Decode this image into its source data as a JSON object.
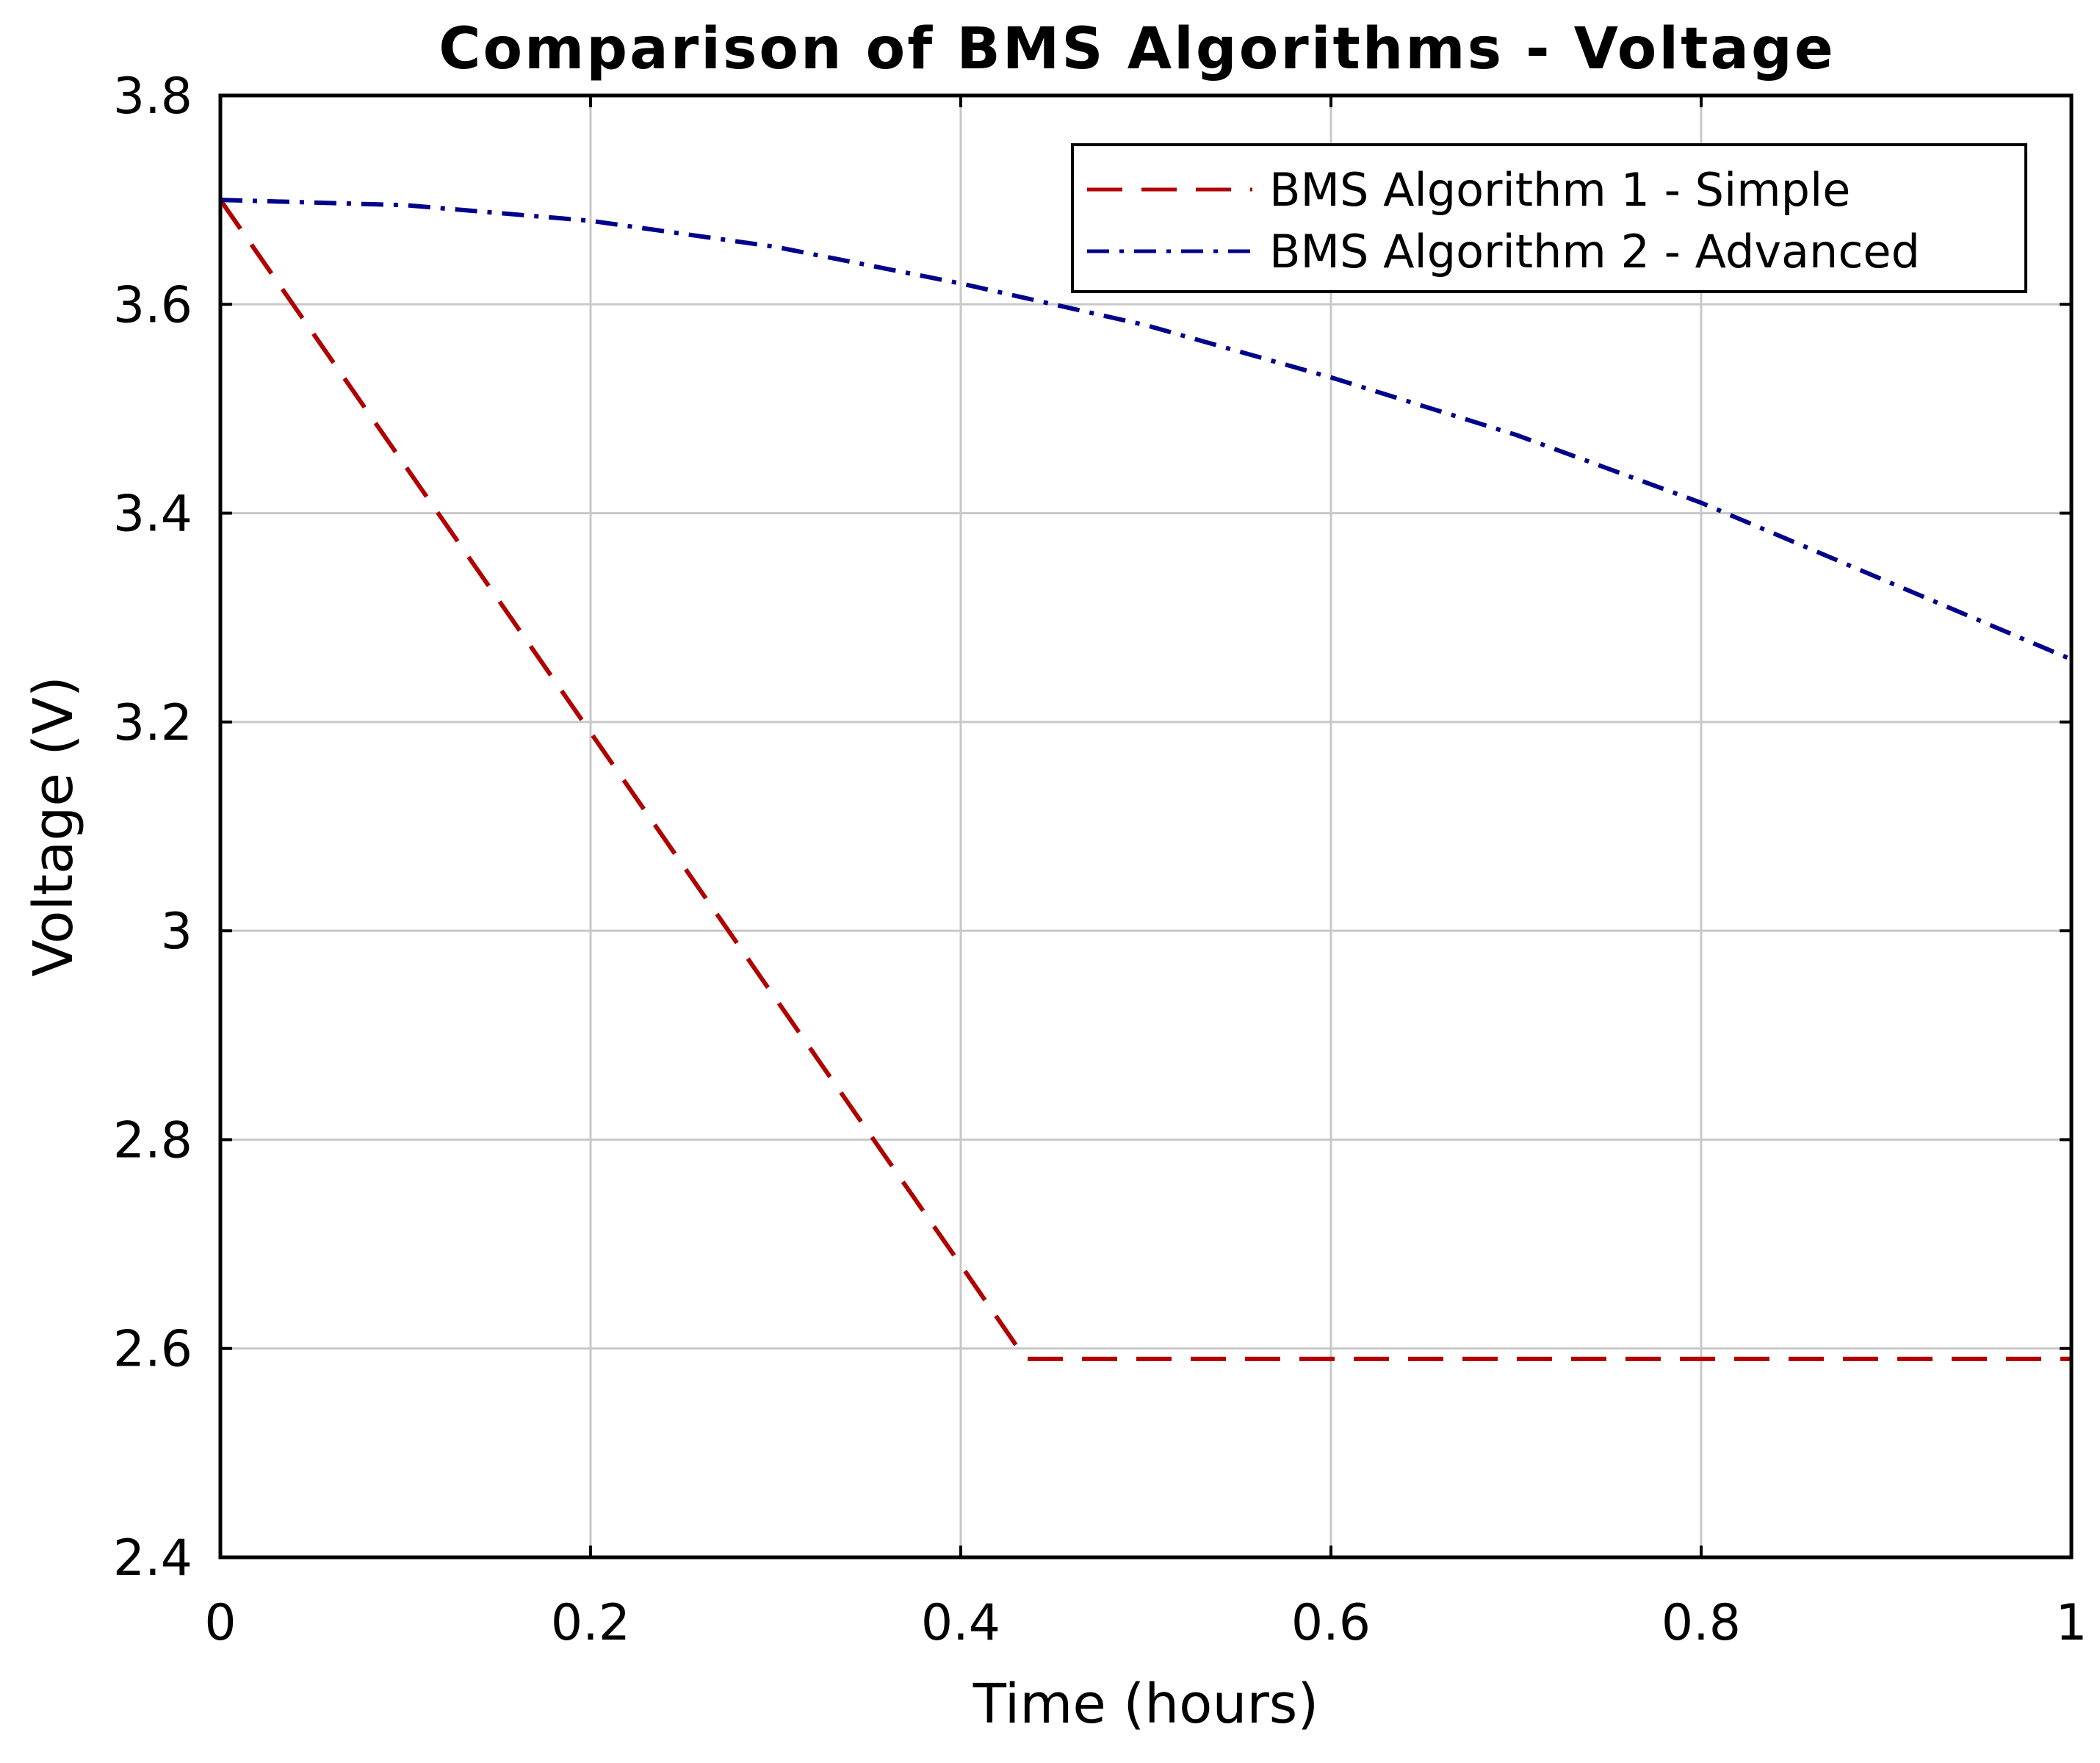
{
  "chart_data": {
    "type": "line",
    "title": "Comparison of BMS Algorithms - Voltage",
    "xlabel": "Time (hours)",
    "ylabel": "Voltage (V)",
    "xlim": [
      0,
      1
    ],
    "ylim": [
      2.4,
      3.8
    ],
    "xticks": [
      0,
      0.2,
      0.4,
      0.6,
      0.8,
      1
    ],
    "xtick_labels": [
      "0",
      "0.2",
      "0.4",
      "0.6",
      "0.8",
      "1"
    ],
    "yticks": [
      2.4,
      2.6,
      2.8,
      3.0,
      3.2,
      3.4,
      3.6,
      3.8
    ],
    "ytick_labels": [
      "2.4",
      "2.6",
      "2.8",
      "3",
      "3.2",
      "3.4",
      "3.6",
      "3.8"
    ],
    "grid": true,
    "legend_position": "top-right",
    "series": [
      {
        "name": "BMS Algorithm 1 - Simple",
        "color": "#b00000",
        "line_style": "dashed",
        "x": [
          0,
          0.1,
          0.2,
          0.3,
          0.4,
          0.435,
          0.5,
          0.6,
          0.7,
          0.8,
          0.9,
          1.0
        ],
        "y": [
          3.7,
          3.445,
          3.19,
          2.935,
          2.68,
          2.59,
          2.59,
          2.59,
          2.59,
          2.59,
          2.59,
          2.59
        ]
      },
      {
        "name": "BMS Algorithm 2 - Advanced",
        "color": "#00008b",
        "line_style": "dash-dot",
        "x": [
          0,
          0.1,
          0.2,
          0.3,
          0.4,
          0.5,
          0.6,
          0.7,
          0.8,
          0.9,
          1.0
        ],
        "y": [
          3.7,
          3.695,
          3.68,
          3.655,
          3.62,
          3.58,
          3.53,
          3.475,
          3.41,
          3.335,
          3.26
        ]
      }
    ]
  }
}
